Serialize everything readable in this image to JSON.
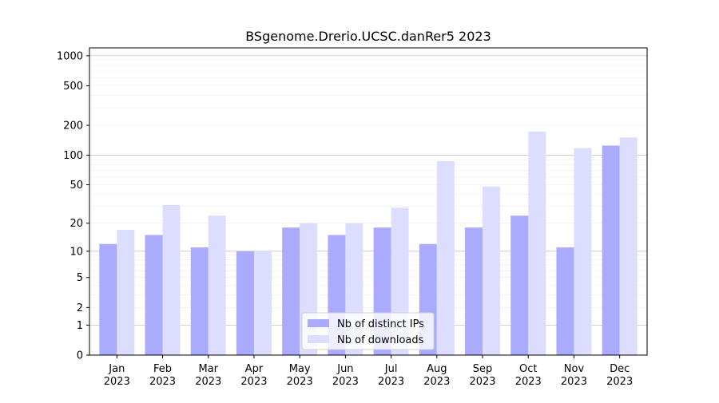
{
  "chart_data": {
    "type": "bar",
    "title": "BSgenome.Drerio.UCSC.danRer5 2023",
    "xlabel": "",
    "ylabel": "",
    "yscale": "log1p",
    "ylim": [
      0,
      1200
    ],
    "yticks": [
      0,
      1,
      2,
      5,
      10,
      20,
      50,
      100,
      200,
      500,
      1000
    ],
    "ytick_labels": [
      "0",
      "1",
      "2",
      "5",
      "10",
      "20",
      "50",
      "100",
      "200",
      "500",
      "1000"
    ],
    "categories": [
      "Jan\n2023",
      "Feb\n2023",
      "Mar\n2023",
      "Apr\n2023",
      "May\n2023",
      "Jun\n2023",
      "Jul\n2023",
      "Aug\n2023",
      "Sep\n2023",
      "Oct\n2023",
      "Nov\n2023",
      "Dec\n2023"
    ],
    "series": [
      {
        "name": "Nb of distinct IPs",
        "color": "#aaaaff",
        "values": [
          12,
          15,
          11,
          10,
          18,
          15,
          18,
          12,
          18,
          24,
          11,
          125
        ]
      },
      {
        "name": "Nb of downloads",
        "color": "#ddddff",
        "values": [
          17,
          31,
          24,
          10,
          20,
          20,
          29,
          87,
          48,
          173,
          118,
          151
        ]
      }
    ],
    "grid": true,
    "legend_position": "bottom-center"
  }
}
